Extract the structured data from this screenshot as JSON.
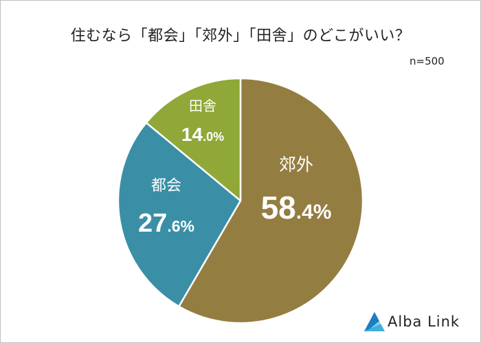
{
  "title": "住むなら「都会」「郊外」「田舎」のどこがいい？",
  "note": "n=500",
  "brand": "Alba Link",
  "chart_data": {
    "type": "pie",
    "unit": "%",
    "slices": [
      {
        "label": "郊外",
        "value": 58.4,
        "int": "58",
        "dec": ".4%",
        "color": "#947d41"
      },
      {
        "label": "都会",
        "value": 27.6,
        "int": "27",
        "dec": ".6%",
        "color": "#3a8fa6"
      },
      {
        "label": "田舎",
        "value": 14.0,
        "int": "14",
        "dec": ".0%",
        "color": "#8fa838"
      }
    ],
    "start": "12 o'clock",
    "direction": "clockwise"
  }
}
